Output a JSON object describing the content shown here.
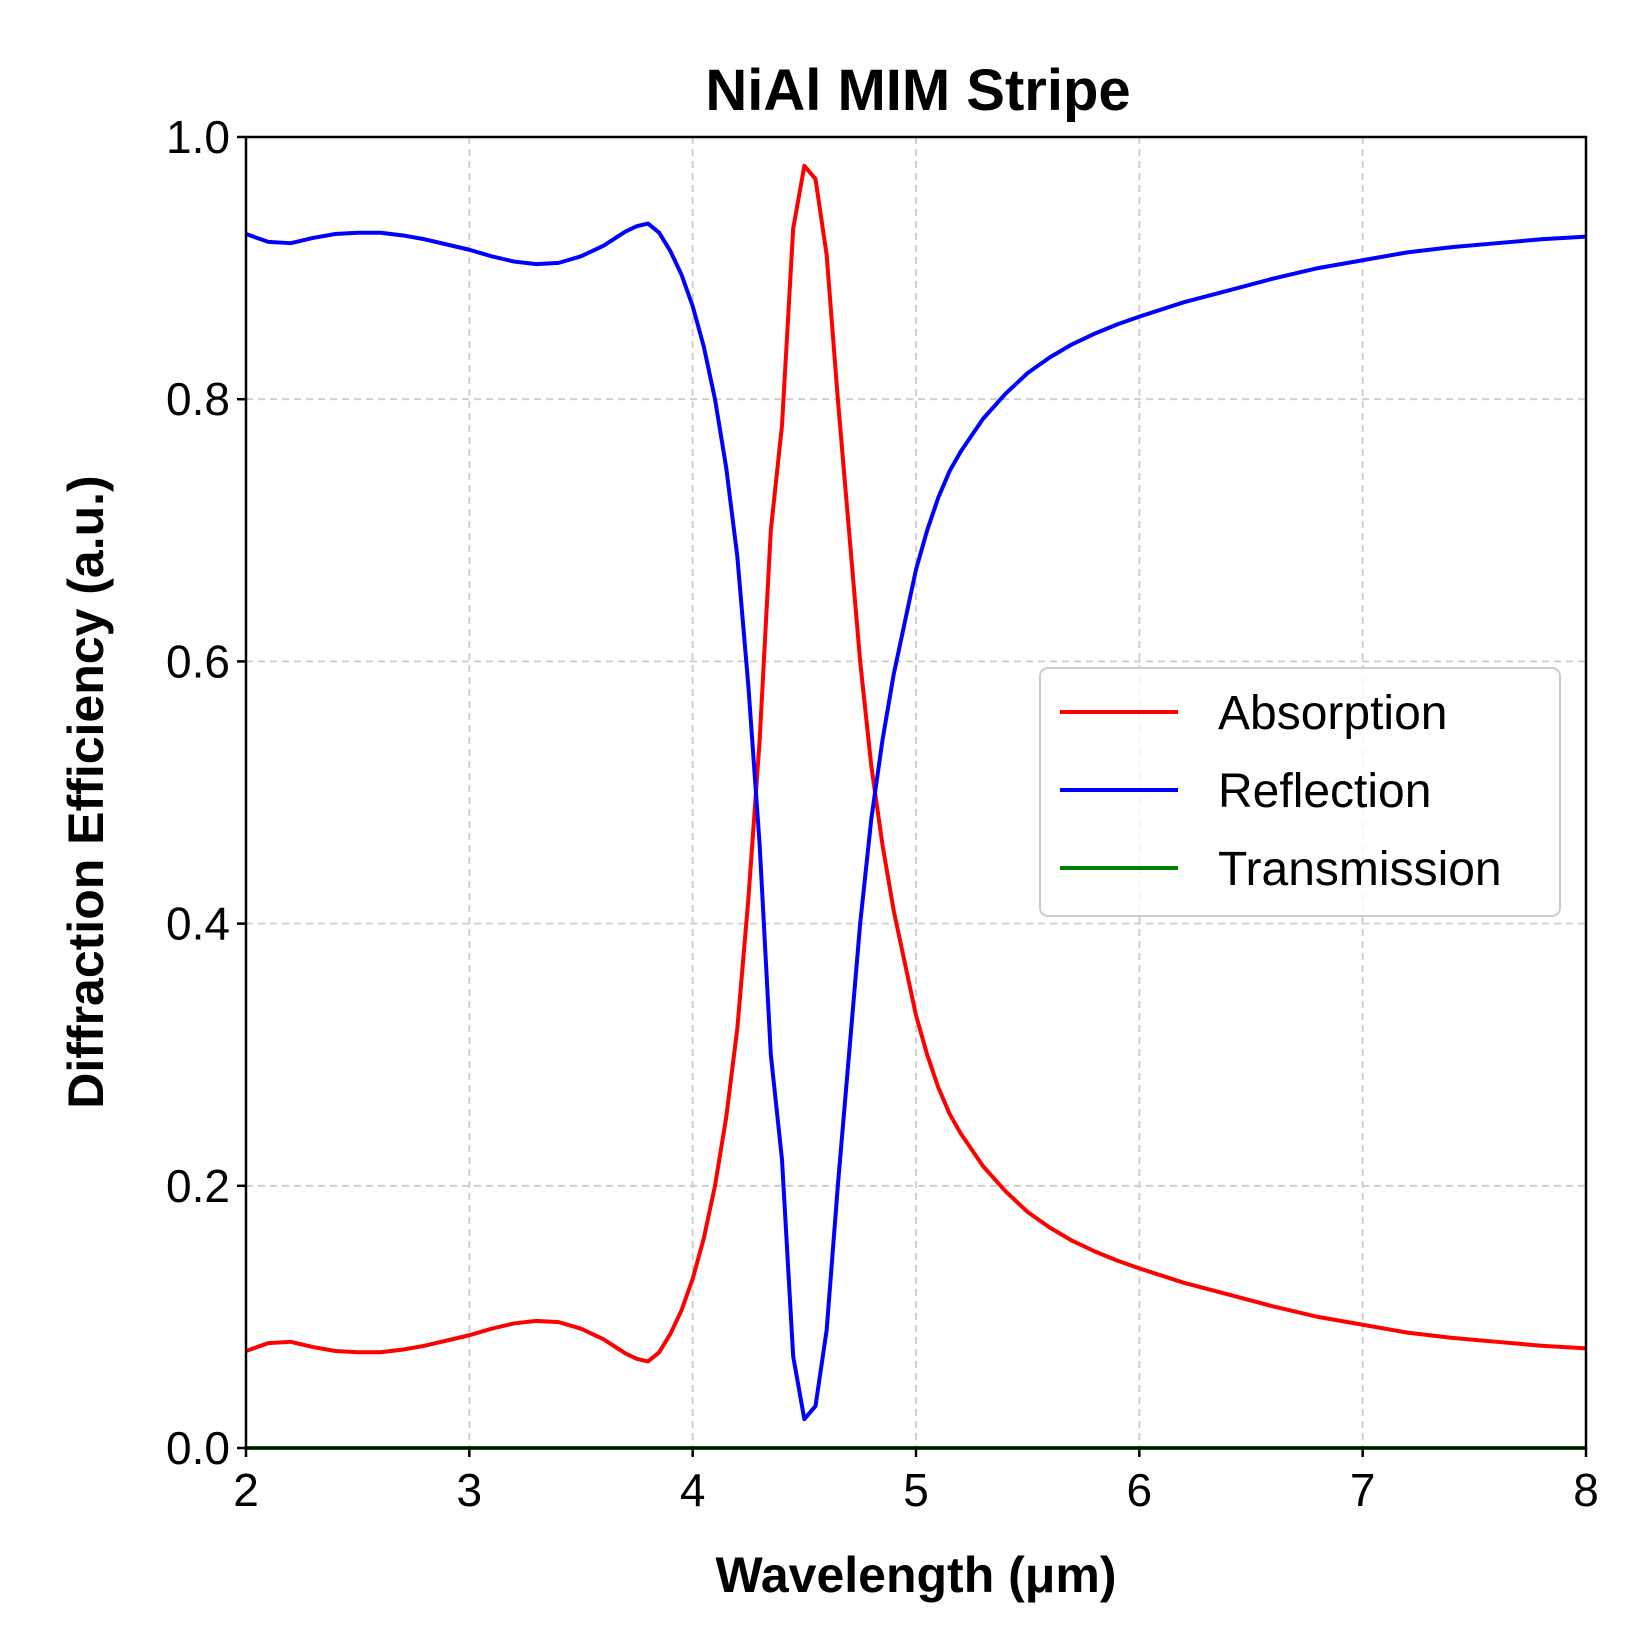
{
  "chart_data": {
    "type": "line",
    "title": "NiAl MIM Stripe",
    "xlabel": "Wavelength (μm)",
    "ylabel": "Diffraction Efficiency (a.u.)",
    "xlim": [
      2,
      8
    ],
    "ylim": [
      0,
      1
    ],
    "xticks": [
      "2",
      "3",
      "4",
      "5",
      "6",
      "7",
      "8"
    ],
    "yticks": [
      "0.0",
      "0.2",
      "0.4",
      "0.6",
      "0.8",
      "1.0"
    ],
    "grid": true,
    "legend_position": "center-right",
    "series": [
      {
        "name": "Absorption",
        "color": "#ff0000",
        "x": [
          2.0,
          2.1,
          2.2,
          2.3,
          2.4,
          2.5,
          2.6,
          2.7,
          2.8,
          2.9,
          3.0,
          3.1,
          3.2,
          3.3,
          3.4,
          3.5,
          3.6,
          3.7,
          3.75,
          3.8,
          3.85,
          3.9,
          3.95,
          4.0,
          4.05,
          4.1,
          4.15,
          4.2,
          4.25,
          4.3,
          4.35,
          4.4,
          4.45,
          4.5,
          4.55,
          4.6,
          4.65,
          4.7,
          4.75,
          4.8,
          4.85,
          4.9,
          4.95,
          5.0,
          5.05,
          5.1,
          5.15,
          5.2,
          5.3,
          5.4,
          5.5,
          5.6,
          5.7,
          5.8,
          5.9,
          6.0,
          6.2,
          6.4,
          6.6,
          6.8,
          7.0,
          7.2,
          7.4,
          7.6,
          7.8,
          8.0
        ],
        "values": [
          0.074,
          0.08,
          0.081,
          0.077,
          0.074,
          0.073,
          0.073,
          0.075,
          0.078,
          0.082,
          0.086,
          0.091,
          0.095,
          0.097,
          0.096,
          0.091,
          0.083,
          0.072,
          0.068,
          0.066,
          0.073,
          0.087,
          0.105,
          0.129,
          0.16,
          0.2,
          0.252,
          0.32,
          0.42,
          0.54,
          0.7,
          0.78,
          0.93,
          0.978,
          0.968,
          0.91,
          0.8,
          0.7,
          0.6,
          0.52,
          0.46,
          0.41,
          0.37,
          0.33,
          0.3,
          0.275,
          0.255,
          0.24,
          0.215,
          0.196,
          0.18,
          0.168,
          0.158,
          0.15,
          0.143,
          0.137,
          0.126,
          0.117,
          0.108,
          0.1,
          0.094,
          0.088,
          0.084,
          0.081,
          0.078,
          0.076
        ]
      },
      {
        "name": "Reflection",
        "color": "#0000ff",
        "x": [
          2.0,
          2.1,
          2.2,
          2.3,
          2.4,
          2.5,
          2.6,
          2.7,
          2.8,
          2.9,
          3.0,
          3.1,
          3.2,
          3.3,
          3.4,
          3.5,
          3.6,
          3.7,
          3.75,
          3.8,
          3.85,
          3.9,
          3.95,
          4.0,
          4.05,
          4.1,
          4.15,
          4.2,
          4.25,
          4.3,
          4.35,
          4.4,
          4.45,
          4.5,
          4.55,
          4.6,
          4.65,
          4.7,
          4.75,
          4.8,
          4.85,
          4.9,
          4.95,
          5.0,
          5.05,
          5.1,
          5.15,
          5.2,
          5.3,
          5.4,
          5.5,
          5.6,
          5.7,
          5.8,
          5.9,
          6.0,
          6.2,
          6.4,
          6.6,
          6.8,
          7.0,
          7.2,
          7.4,
          7.6,
          7.8,
          8.0
        ],
        "values": [
          0.926,
          0.92,
          0.919,
          0.923,
          0.926,
          0.927,
          0.927,
          0.925,
          0.922,
          0.918,
          0.914,
          0.909,
          0.905,
          0.903,
          0.904,
          0.909,
          0.917,
          0.928,
          0.932,
          0.934,
          0.927,
          0.913,
          0.895,
          0.871,
          0.84,
          0.8,
          0.748,
          0.68,
          0.58,
          0.46,
          0.3,
          0.22,
          0.07,
          0.022,
          0.032,
          0.09,
          0.2,
          0.3,
          0.4,
          0.48,
          0.54,
          0.59,
          0.63,
          0.67,
          0.7,
          0.725,
          0.745,
          0.76,
          0.785,
          0.804,
          0.82,
          0.832,
          0.842,
          0.85,
          0.857,
          0.863,
          0.874,
          0.883,
          0.892,
          0.9,
          0.906,
          0.912,
          0.916,
          0.919,
          0.922,
          0.924
        ]
      },
      {
        "name": "Transmission",
        "color": "#008000",
        "x": [
          2.0,
          8.0
        ],
        "values": [
          0.0,
          0.0
        ]
      }
    ]
  }
}
